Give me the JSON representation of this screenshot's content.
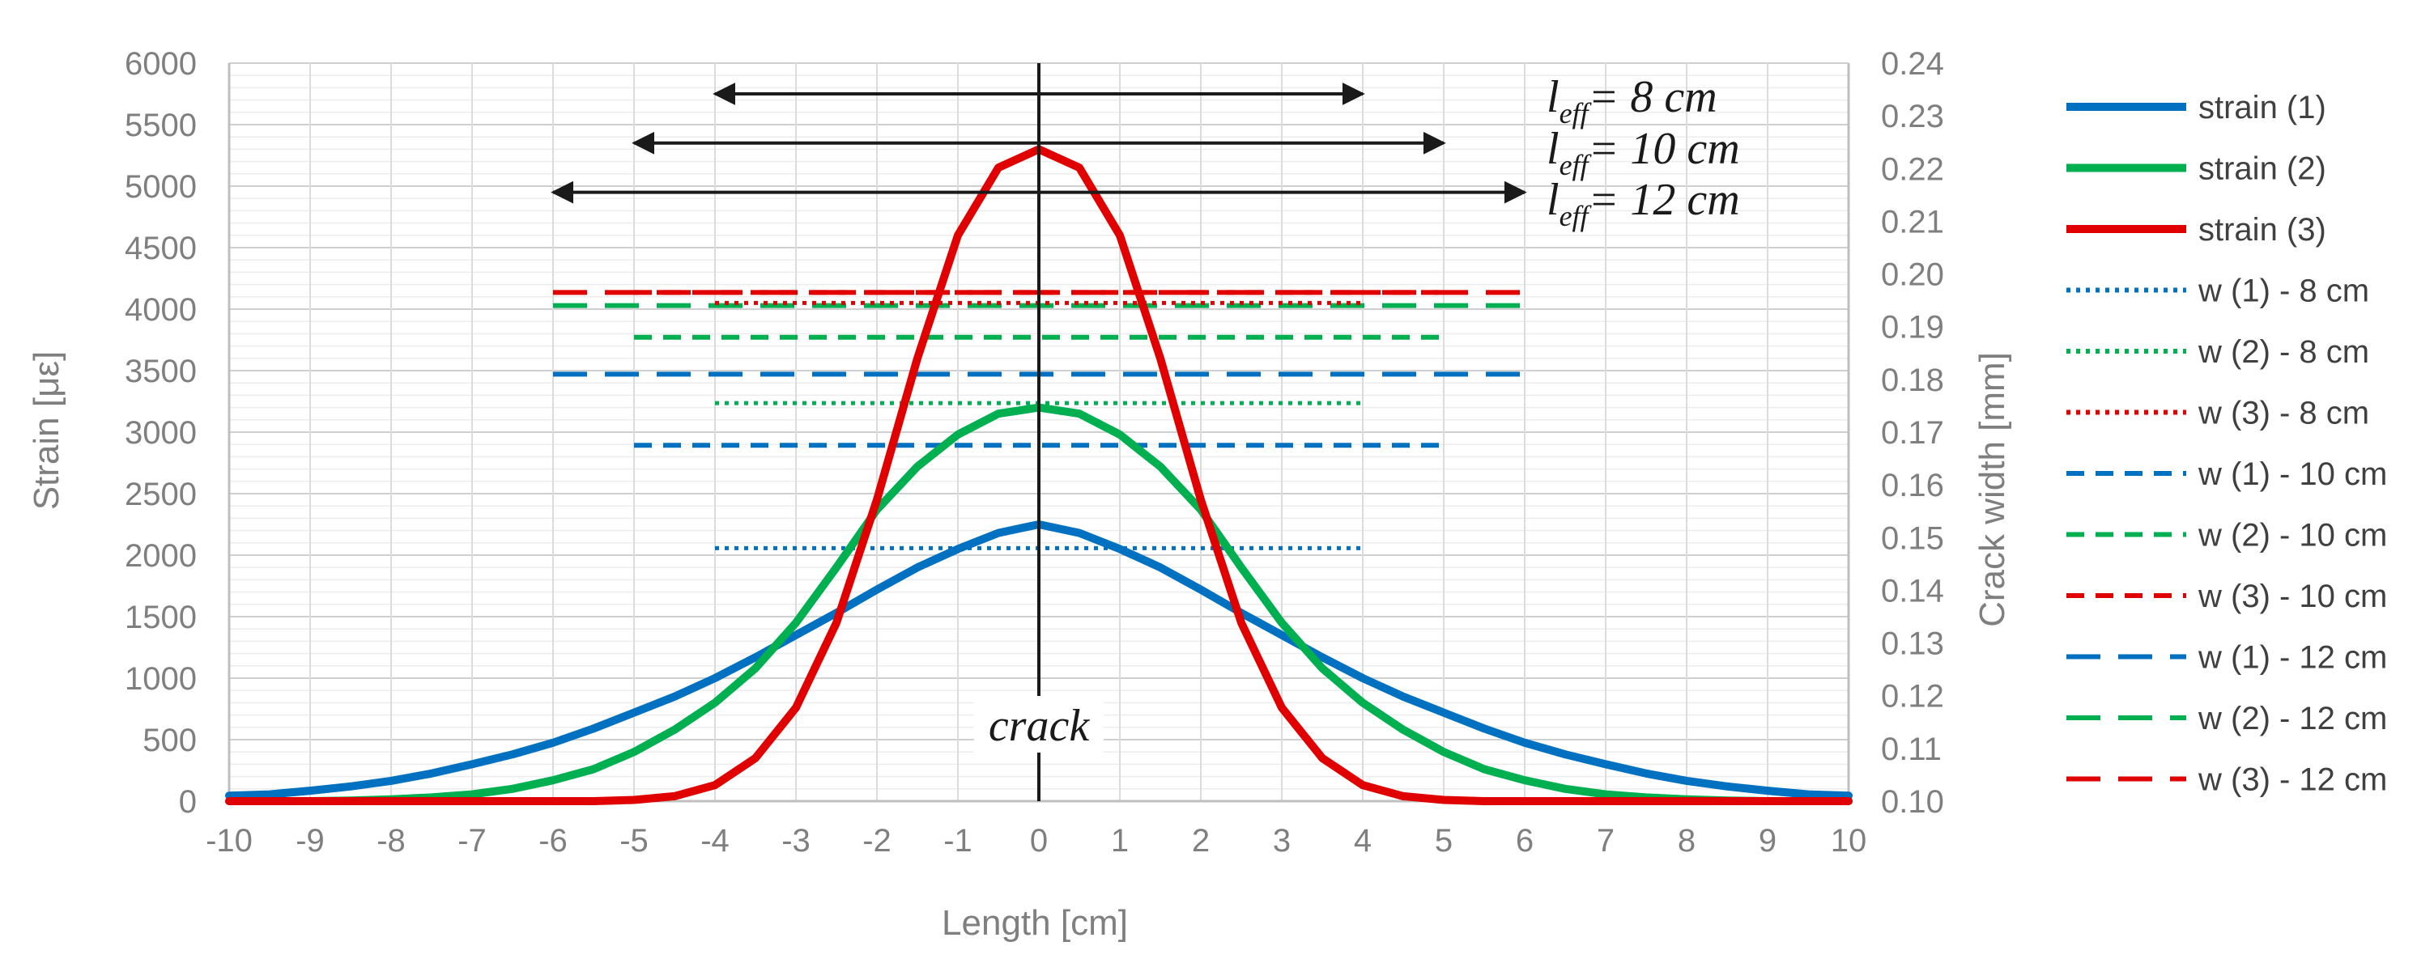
{
  "chart_data": {
    "type": "line",
    "xlabel": "Length [cm]",
    "ylabel": "Strain [με]",
    "y2label": "Crack width [mm]",
    "xlim": [
      -10,
      10
    ],
    "ylim": [
      0,
      6000
    ],
    "y2lim": [
      0.1,
      0.24
    ],
    "x_ticks": [
      "-10",
      "-9",
      "-8",
      "-7",
      "-6",
      "-5",
      "-4",
      "-3",
      "-2",
      "-1",
      "0",
      "1",
      "2",
      "3",
      "4",
      "5",
      "6",
      "7",
      "8",
      "9",
      "10"
    ],
    "y_ticks": [
      "0",
      "500",
      "1000",
      "1500",
      "2000",
      "2500",
      "3000",
      "3500",
      "4000",
      "4500",
      "5000",
      "5500",
      "6000"
    ],
    "y2_ticks": [
      "0.10",
      "0.11",
      "0.12",
      "0.13",
      "0.14",
      "0.15",
      "0.16",
      "0.17",
      "0.18",
      "0.19",
      "0.20",
      "0.21",
      "0.22",
      "0.23",
      "0.24"
    ],
    "grid": true,
    "legend_position": "right",
    "x": [
      -10,
      -9.5,
      -9,
      -8.5,
      -8,
      -7.5,
      -7,
      -6.5,
      -6,
      -5.5,
      -5,
      -4.5,
      -4,
      -3.5,
      -3,
      -2.5,
      -2,
      -1.5,
      -1,
      -0.5,
      0,
      0.5,
      1,
      1.5,
      2,
      2.5,
      3,
      3.5,
      4,
      4.5,
      5,
      5.5,
      6,
      6.5,
      7,
      7.5,
      8,
      8.5,
      9,
      9.5,
      10
    ],
    "series": [
      {
        "name": "strain (1)",
        "axis": "left",
        "color": "#0070c0",
        "style": "solid",
        "width": 10,
        "values": [
          45,
          55,
          85,
          120,
          165,
          225,
          300,
          380,
          475,
          590,
          720,
          850,
          1000,
          1170,
          1350,
          1530,
          1720,
          1900,
          2050,
          2180,
          2250,
          2180,
          2050,
          1900,
          1720,
          1530,
          1350,
          1170,
          1000,
          850,
          720,
          590,
          475,
          380,
          300,
          225,
          165,
          120,
          85,
          55,
          45
        ]
      },
      {
        "name": "strain (2)",
        "axis": "left",
        "color": "#00b050",
        "style": "solid",
        "width": 10,
        "values": [
          0,
          0,
          0,
          5,
          15,
          30,
          55,
          100,
          170,
          260,
          400,
          580,
          800,
          1080,
          1450,
          1900,
          2370,
          2720,
          2980,
          3150,
          3200,
          3150,
          2980,
          2720,
          2370,
          1900,
          1450,
          1080,
          800,
          580,
          400,
          260,
          170,
          100,
          55,
          30,
          15,
          5,
          0,
          0,
          0
        ]
      },
      {
        "name": "strain (3)",
        "axis": "left",
        "color": "#e00000",
        "style": "solid",
        "width": 10,
        "values": [
          0,
          0,
          0,
          0,
          0,
          0,
          0,
          0,
          0,
          0,
          10,
          40,
          130,
          350,
          760,
          1450,
          2450,
          3600,
          4600,
          5150,
          5300,
          5150,
          4600,
          3600,
          2450,
          1450,
          760,
          350,
          130,
          40,
          10,
          0,
          0,
          0,
          0,
          0,
          0,
          0,
          0,
          0,
          0
        ]
      },
      {
        "name": "w (1) - 8 cm",
        "axis": "right",
        "color": "#0070c0",
        "style": "dotted",
        "width": 5,
        "x_range": [
          -4,
          4
        ],
        "value": 0.148
      },
      {
        "name": "w (2) - 8 cm",
        "axis": "right",
        "color": "#00b050",
        "style": "dotted",
        "width": 5,
        "x_range": [
          -4,
          4
        ],
        "value": 0.1755
      },
      {
        "name": "w (3) - 8 cm",
        "axis": "right",
        "color": "#e00000",
        "style": "dotted",
        "width": 5,
        "x_range": [
          -4,
          4
        ],
        "value": 0.1945
      },
      {
        "name": "w (1) - 10 cm",
        "axis": "right",
        "color": "#0070c0",
        "style": "dashed",
        "width": 6,
        "x_range": [
          -5,
          5
        ],
        "value": 0.1675
      },
      {
        "name": "w (2) - 10 cm",
        "axis": "right",
        "color": "#00b050",
        "style": "dashed",
        "width": 6,
        "x_range": [
          -5,
          5
        ],
        "value": 0.188
      },
      {
        "name": "w (3) - 10 cm",
        "axis": "right",
        "color": "#e00000",
        "style": "dashed",
        "width": 6,
        "x_range": [
          -5,
          5
        ],
        "value": 0.1965
      },
      {
        "name": "w (1) - 12 cm",
        "axis": "right",
        "color": "#0070c0",
        "style": "longdash",
        "width": 6,
        "x_range": [
          -6,
          6
        ],
        "value": 0.181
      },
      {
        "name": "w (2) - 12 cm",
        "axis": "right",
        "color": "#00b050",
        "style": "longdash",
        "width": 6,
        "x_range": [
          -6,
          6
        ],
        "value": 0.194
      },
      {
        "name": "w (3) - 12 cm",
        "axis": "right",
        "color": "#e00000",
        "style": "longdash",
        "width": 6,
        "x_range": [
          -6,
          6
        ],
        "value": 0.1965
      }
    ],
    "annotations": {
      "crack_label": "crack",
      "crack_x": 0,
      "ranges": [
        {
          "l": "l",
          "sub": "eff",
          "text": "= 8 cm",
          "from": -4,
          "to": 4,
          "y": 5750
        },
        {
          "l": "l",
          "sub": "eff",
          "text": "= 10 cm",
          "from": -5,
          "to": 5,
          "y": 5350
        },
        {
          "l": "l",
          "sub": "eff",
          "text": "= 12 cm",
          "from": -6,
          "to": 6,
          "y": 4950
        }
      ]
    }
  }
}
